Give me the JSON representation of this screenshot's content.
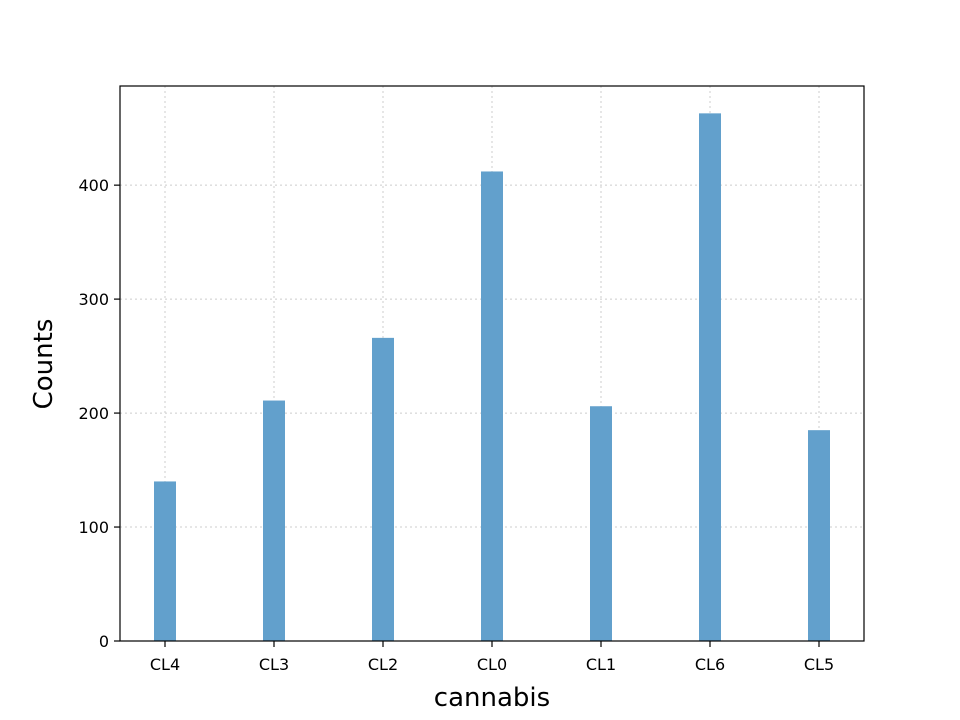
{
  "chart_data": {
    "type": "bar",
    "xlabel": "cannabis",
    "ylabel": "Counts",
    "categories": [
      "CL4",
      "CL3",
      "CL2",
      "CL0",
      "CL1",
      "CL6",
      "CL5"
    ],
    "values": [
      140,
      211,
      266,
      412,
      206,
      463,
      185
    ],
    "ylim": [
      0,
      487
    ],
    "yticks": [
      0,
      100,
      200,
      300,
      400
    ],
    "grid": true,
    "bar_color": "#62a0cc",
    "grid_color": "#cccccc"
  }
}
